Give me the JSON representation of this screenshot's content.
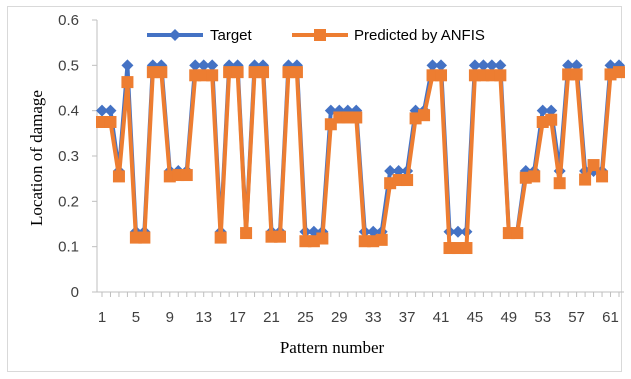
{
  "chart_data": {
    "type": "line",
    "title": "",
    "xlabel": "Pattern number",
    "ylabel": "Location of damage",
    "ylim": [
      0,
      0.6
    ],
    "yticks": [
      "0",
      "0.1",
      "0.2",
      "0.3",
      "0.4",
      "0.5",
      "0.6"
    ],
    "xticks": [
      "1",
      "5",
      "9",
      "13",
      "17",
      "21",
      "25",
      "29",
      "33",
      "37",
      "41",
      "45",
      "49",
      "53",
      "57",
      "61"
    ],
    "grid": false,
    "legend": "top",
    "x": [
      1,
      2,
      3,
      4,
      5,
      6,
      7,
      8,
      9,
      10,
      11,
      12,
      13,
      14,
      15,
      16,
      17,
      18,
      19,
      20,
      21,
      22,
      23,
      24,
      25,
      26,
      27,
      28,
      29,
      30,
      31,
      32,
      33,
      34,
      35,
      36,
      37,
      38,
      39,
      40,
      41,
      42,
      43,
      44,
      45,
      46,
      47,
      48,
      49,
      50,
      51,
      52,
      53,
      54,
      55,
      56,
      57,
      58,
      59,
      60,
      61,
      62
    ],
    "series": [
      {
        "name": "Target",
        "color": "#4472c4",
        "marker": "diamond",
        "values": [
          0.4,
          0.4,
          0.267,
          0.5,
          0.133,
          0.133,
          0.5,
          0.5,
          0.267,
          0.267,
          0.267,
          0.5,
          0.5,
          0.5,
          0.133,
          0.5,
          0.5,
          0.133,
          0.5,
          0.5,
          0.133,
          0.133,
          0.5,
          0.5,
          0.133,
          0.133,
          0.133,
          0.4,
          0.4,
          0.4,
          0.4,
          0.133,
          0.133,
          0.133,
          0.267,
          0.267,
          0.267,
          0.4,
          0.4,
          0.5,
          0.5,
          0.133,
          0.133,
          0.133,
          0.5,
          0.5,
          0.5,
          0.5,
          0.133,
          0.133,
          0.267,
          0.267,
          0.4,
          0.4,
          0.267,
          0.5,
          0.5,
          0.267,
          0.267,
          0.267,
          0.5,
          0.5
        ]
      },
      {
        "name": "Predicted by ANFIS",
        "color": "#ed7d31",
        "marker": "square",
        "values": [
          0.375,
          0.375,
          0.255,
          0.463,
          0.12,
          0.12,
          0.485,
          0.485,
          0.255,
          0.258,
          0.258,
          0.478,
          0.478,
          0.478,
          0.12,
          0.485,
          0.485,
          0.13,
          0.485,
          0.485,
          0.122,
          0.122,
          0.485,
          0.485,
          0.112,
          0.112,
          0.118,
          0.37,
          0.385,
          0.385,
          0.385,
          0.112,
          0.112,
          0.115,
          0.24,
          0.247,
          0.247,
          0.383,
          0.39,
          0.478,
          0.478,
          0.097,
          0.097,
          0.097,
          0.478,
          0.478,
          0.478,
          0.478,
          0.13,
          0.13,
          0.252,
          0.255,
          0.375,
          0.38,
          0.24,
          0.48,
          0.48,
          0.248,
          0.28,
          0.255,
          0.48,
          0.485
        ]
      }
    ]
  }
}
